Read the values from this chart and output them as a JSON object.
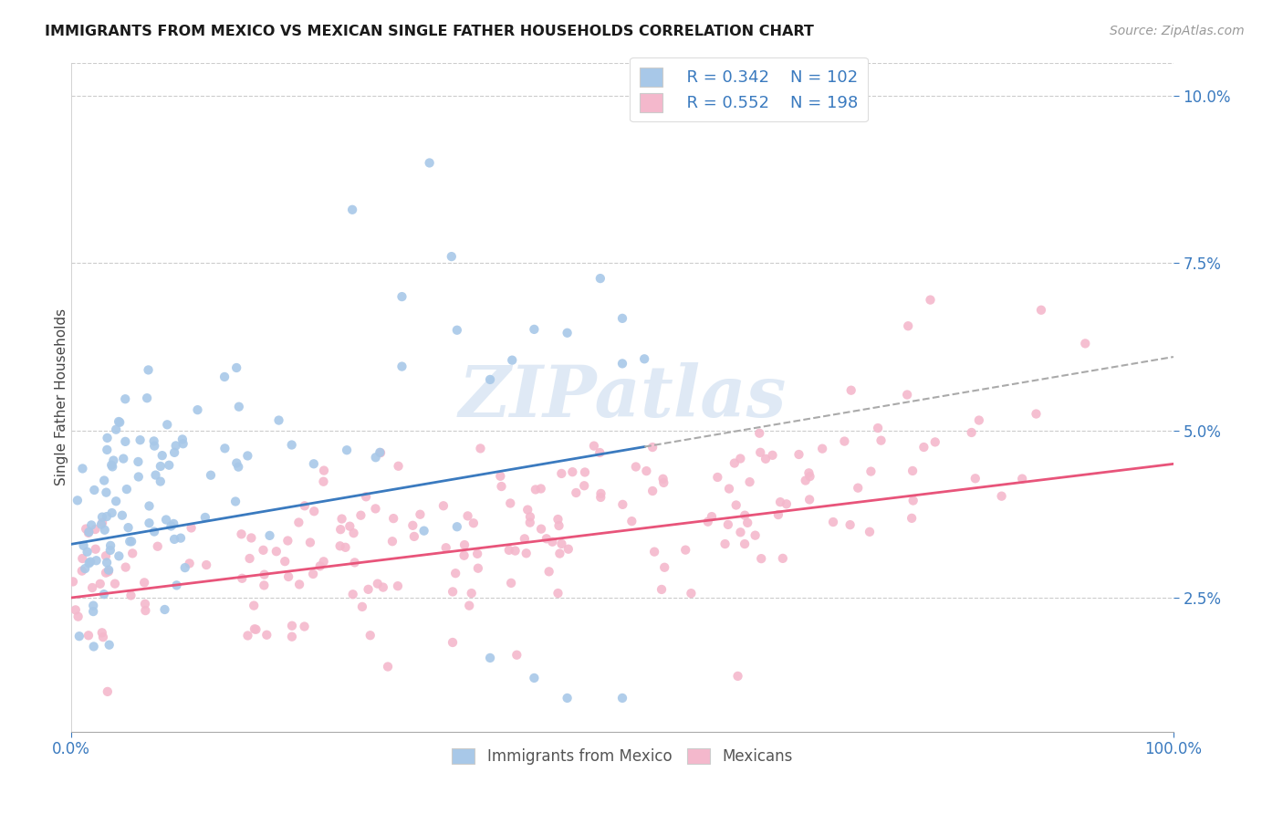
{
  "title": "IMMIGRANTS FROM MEXICO VS MEXICAN SINGLE FATHER HOUSEHOLDS CORRELATION CHART",
  "source": "Source: ZipAtlas.com",
  "ylabel": "Single Father Households",
  "x_min": 0.0,
  "x_max": 1.0,
  "y_min": 0.005,
  "y_max": 0.105,
  "y_tick_values": [
    0.025,
    0.05,
    0.075,
    0.1
  ],
  "legend_r1": "R = 0.342",
  "legend_n1": "N = 102",
  "legend_r2": "R = 0.552",
  "legend_n2": "N = 198",
  "color_blue": "#a8c8e8",
  "color_pink": "#f4b8cc",
  "color_blue_line": "#3a7abf",
  "color_pink_line": "#e8547a",
  "color_legend_text": "#3a7abf",
  "watermark": "ZIPatlas",
  "background_color": "#ffffff",
  "grid_color": "#cccccc",
  "blue_seed": 7,
  "pink_seed": 13,
  "n_blue": 102,
  "n_pink": 198
}
